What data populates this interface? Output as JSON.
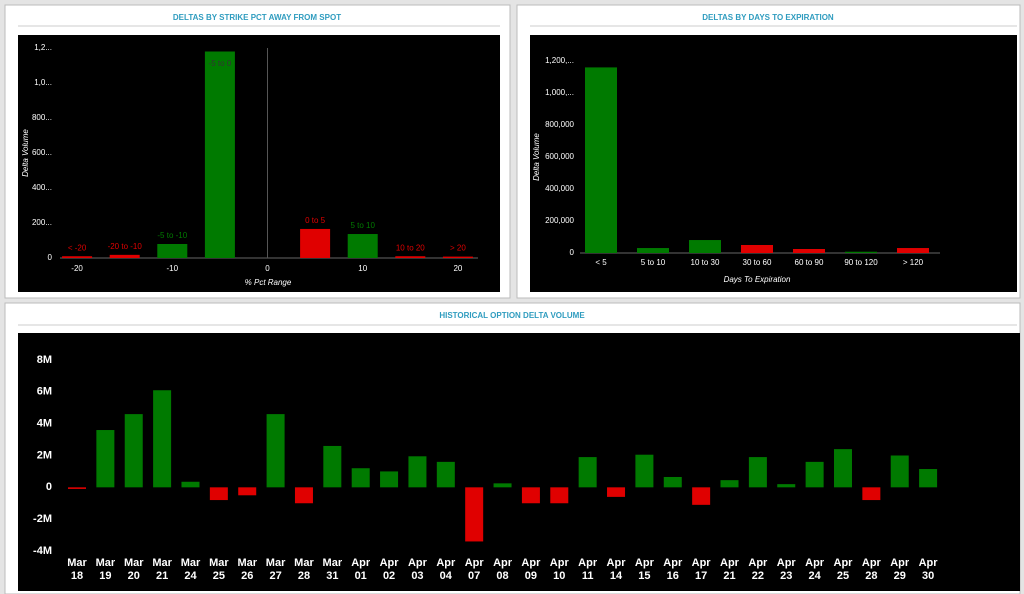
{
  "chart_data": [
    {
      "type": "bar",
      "title": "DELTAS BY STRIKE PCT AWAY FROM SPOT",
      "x": [
        -20,
        -15,
        -10,
        -5,
        5,
        10,
        15,
        20
      ],
      "categories": [
        "< -20",
        "-20 to -10",
        "-5 to -10",
        "-5 to 0",
        "0 to 5",
        "5 to 10",
        "10 to 20",
        "> 20"
      ],
      "values": [
        10000,
        18000,
        80000,
        1180000,
        166000,
        137000,
        10000,
        8000
      ],
      "colors": [
        "#e00000",
        "#e00000",
        "#007a00",
        "#007a00",
        "#e00000",
        "#007a00",
        "#e00000",
        "#e00000"
      ],
      "xlim": [
        -24,
        24
      ],
      "xticks": [
        -20,
        -10,
        0,
        10,
        20
      ],
      "ylim": [
        0,
        1200000
      ],
      "yticks": [
        0,
        {
          "value": 200000,
          "label": "200..."
        },
        {
          "value": 400000,
          "label": "400..."
        },
        {
          "value": 600000,
          "label": "600..."
        },
        {
          "value": 800000,
          "label": "800..."
        },
        {
          "value": 1000000,
          "label": "1,0..."
        },
        {
          "value": 1200000,
          "label": "1,2..."
        }
      ],
      "xlabel": "% Pct Range",
      "ylabel": "Delta Volume"
    },
    {
      "type": "bar",
      "title": "DELTAS BY DAYS TO EXPIRATION",
      "categories": [
        "< 5",
        "5 to 10",
        "10 to 30",
        "30 to 60",
        "60 to 90",
        "90 to 120",
        "> 120"
      ],
      "values": [
        1160000,
        31000,
        81000,
        50000,
        25000,
        8000,
        31000
      ],
      "colors": [
        "#007a00",
        "#007a00",
        "#007a00",
        "#e00000",
        "#e00000",
        "#007a00",
        "#e00000"
      ],
      "ylim": [
        0,
        1200000
      ],
      "yticks": [
        0,
        {
          "value": 200000,
          "label": "200,000"
        },
        {
          "value": 400000,
          "label": "400,000"
        },
        {
          "value": 600000,
          "label": "600,000"
        },
        {
          "value": 800000,
          "label": "800,000"
        },
        {
          "value": 1000000,
          "label": "1,000,..."
        },
        {
          "value": 1200000,
          "label": "1,200,..."
        }
      ],
      "xlabel": "Days To Expiration",
      "ylabel": "Delta Volume"
    },
    {
      "type": "bar",
      "title": "HISTORICAL OPTION DELTA VOLUME",
      "categories": [
        "Mar 18",
        "Mar 19",
        "Mar 20",
        "Mar 21",
        "Mar 24",
        "Mar 25",
        "Mar 26",
        "Mar 27",
        "Mar 28",
        "Mar 31",
        "Apr 01",
        "Apr 02",
        "Apr 03",
        "Apr 04",
        "Apr 07",
        "Apr 08",
        "Apr 09",
        "Apr 10",
        "Apr 11",
        "Apr 14",
        "Apr 15",
        "Apr 16",
        "Apr 17",
        "Apr 21",
        "Apr 22",
        "Apr 23",
        "Apr 24",
        "Apr 25",
        "Apr 28",
        "Apr 29",
        "Apr 30"
      ],
      "values": [
        -100000,
        3600000,
        4600000,
        6100000,
        350000,
        -800000,
        -500000,
        4600000,
        -1000000,
        2600000,
        1200000,
        1000000,
        1950000,
        1600000,
        -3400000,
        250000,
        -1000000,
        -1000000,
        1900000,
        -600000,
        2050000,
        650000,
        -1100000,
        450000,
        1900000,
        200000,
        1600000,
        2400000,
        -800000,
        2000000,
        1150000
      ],
      "positive_color": "#007a00",
      "negative_color": "#e00000",
      "ylim": [
        -4000000,
        8000000
      ],
      "yticks": [
        {
          "value": -4000000,
          "label": "-4M"
        },
        {
          "value": -2000000,
          "label": "-2M"
        },
        0,
        {
          "value": 2000000,
          "label": "2M"
        },
        {
          "value": 4000000,
          "label": "4M"
        },
        {
          "value": 6000000,
          "label": "6M"
        },
        {
          "value": 8000000,
          "label": "8M"
        }
      ]
    }
  ]
}
